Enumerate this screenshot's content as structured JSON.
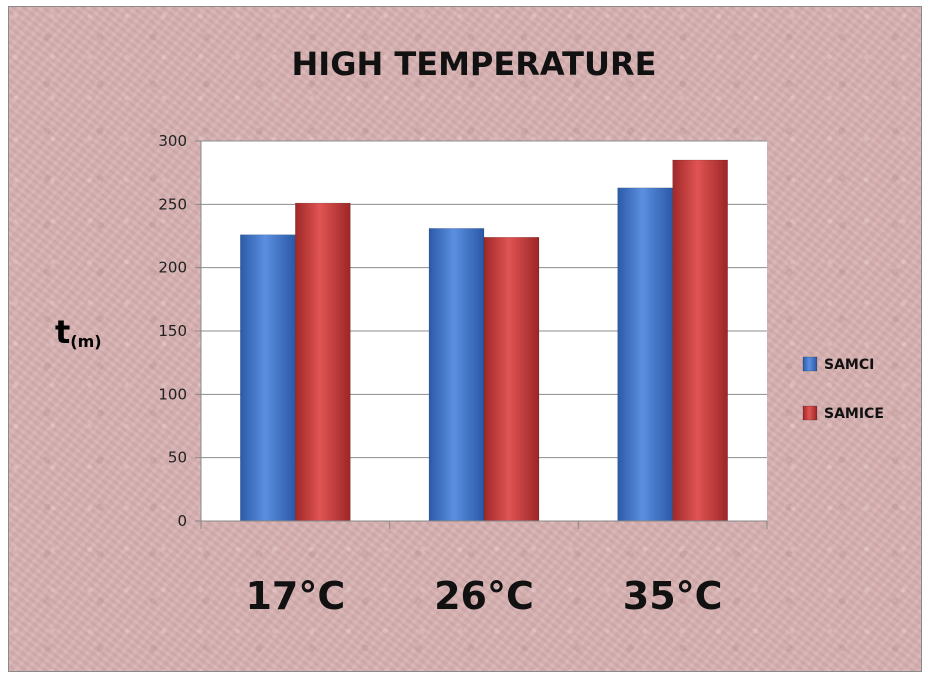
{
  "chart_data": {
    "type": "bar",
    "title": "HIGH TEMPERATURE",
    "ylabel": "t",
    "ylabel_sub": "(m)",
    "xlabel": "",
    "categories": [
      "17°C",
      "26°C",
      "35°C"
    ],
    "series": [
      {
        "name": "SAMCI",
        "values": [
          226,
          231,
          263
        ],
        "color": "#3f73c8"
      },
      {
        "name": "SAMICE",
        "values": [
          251,
          224,
          285
        ],
        "color": "#c63a3a"
      }
    ],
    "ylim": [
      0,
      300
    ],
    "yticks": [
      "0",
      "50",
      "100",
      "150",
      "200",
      "250",
      "300"
    ],
    "grid": true,
    "legend_position": "right"
  }
}
